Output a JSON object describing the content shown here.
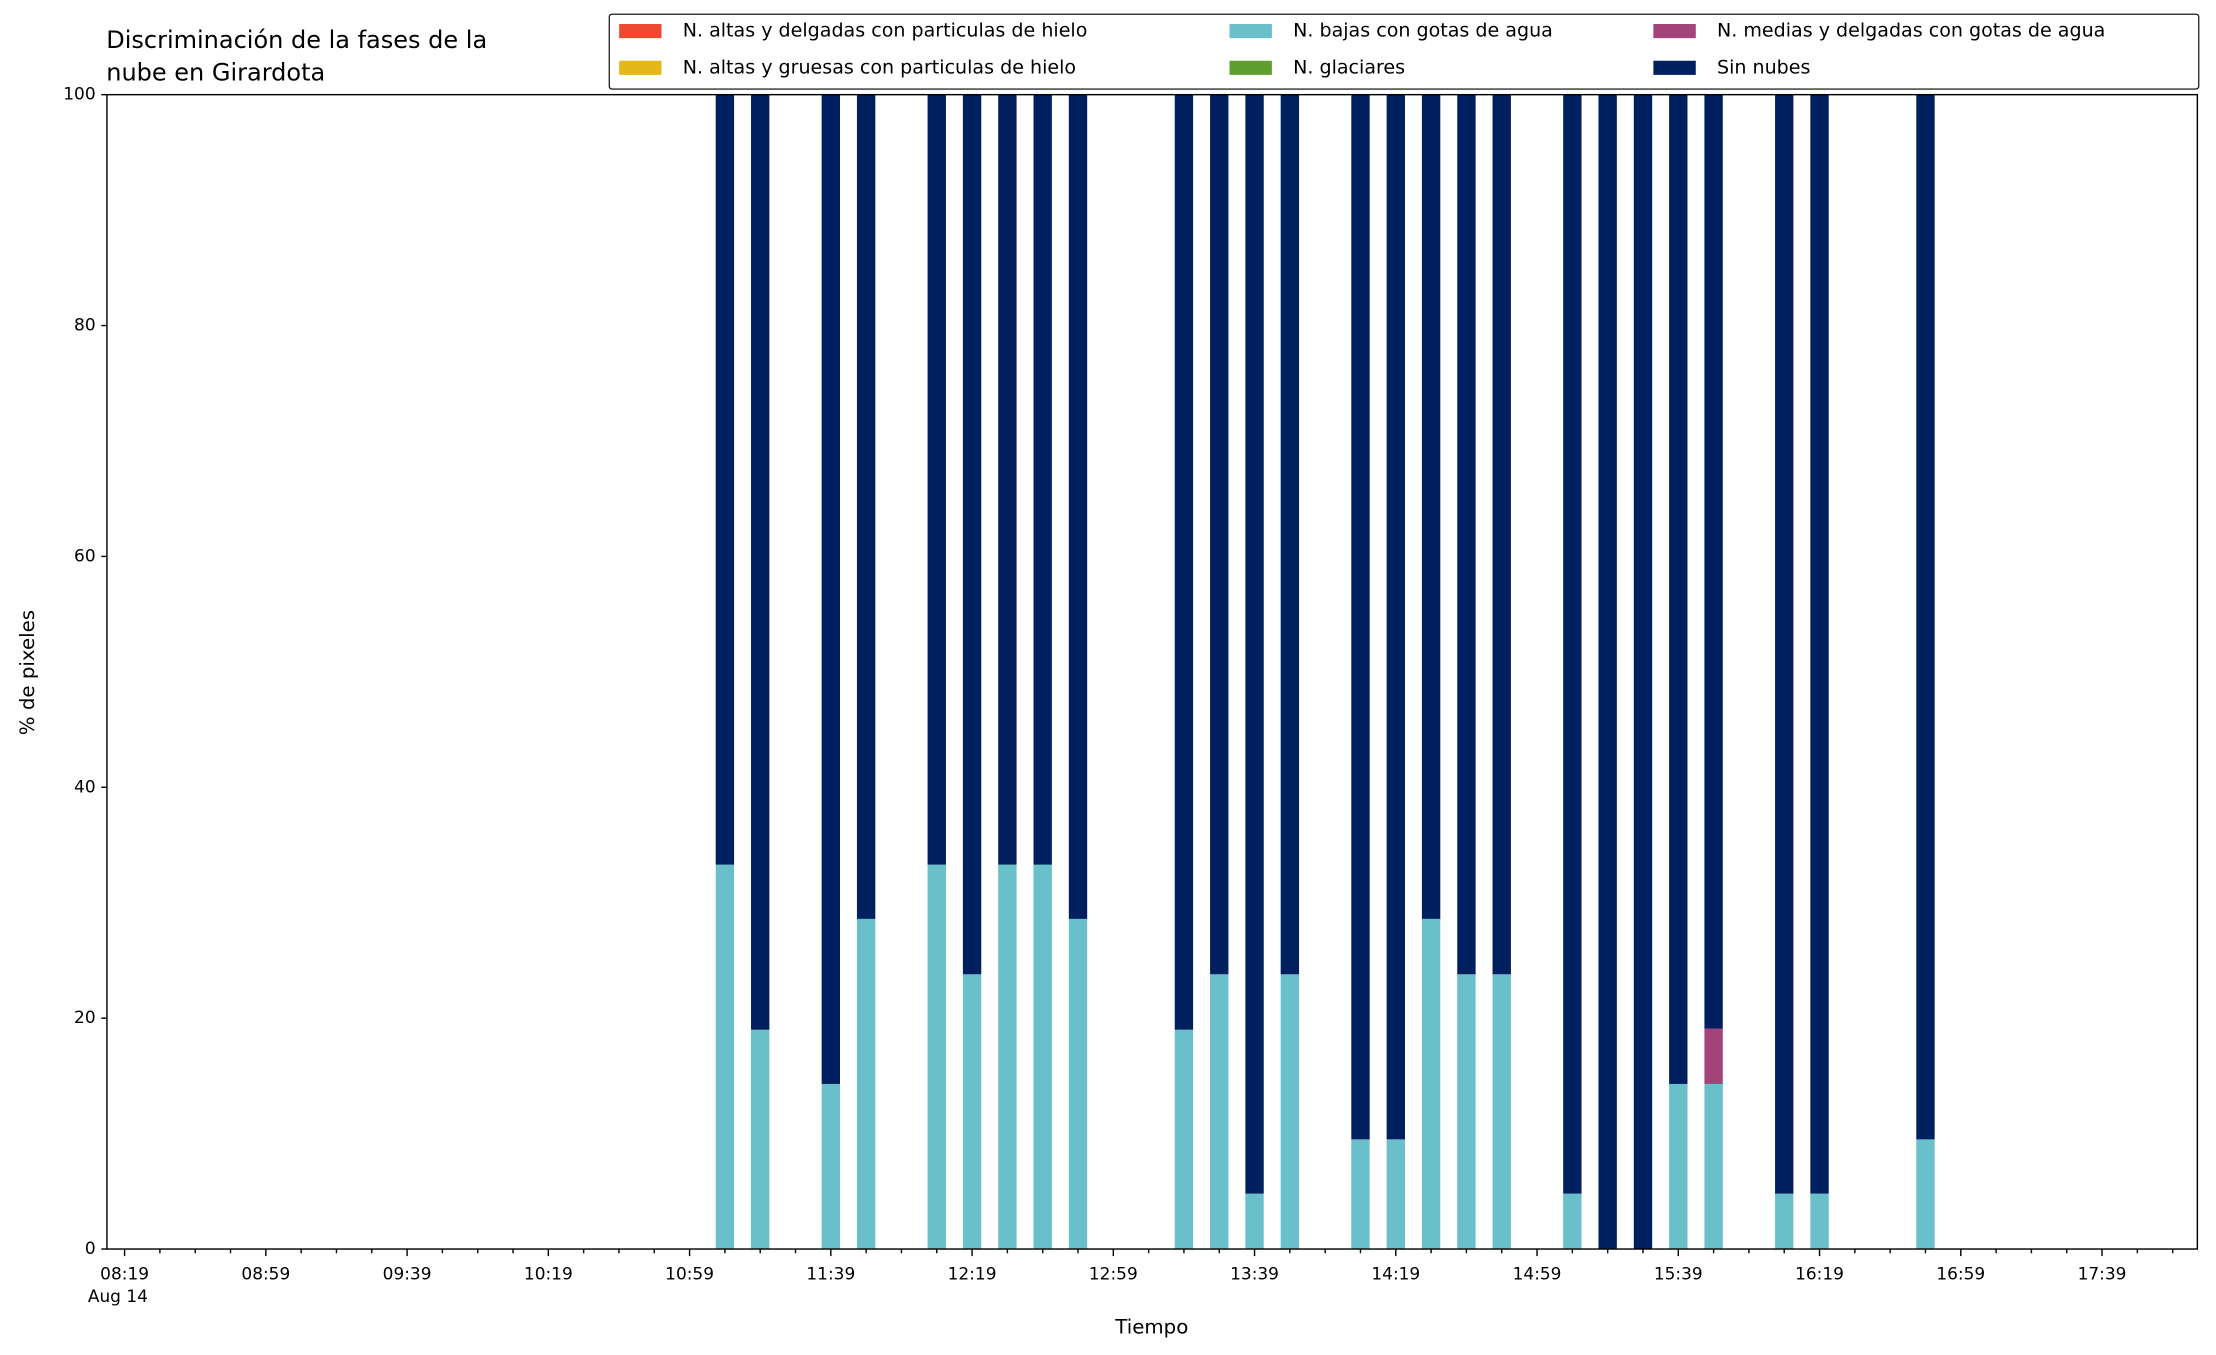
{
  "chart_data": {
    "type": "bar",
    "stacked": true,
    "title": [
      "Discriminación de la fases de la",
      "nube en Girardota"
    ],
    "xlabel": "Tiempo",
    "ylabel": "% de pixeles",
    "x": [
      "11:09",
      "11:19",
      "11:39",
      "11:49",
      "12:09",
      "12:19",
      "12:29",
      "12:39",
      "12:49",
      "13:19",
      "13:29",
      "13:39",
      "13:49",
      "14:09",
      "14:19",
      "14:29",
      "14:39",
      "14:49",
      "15:09",
      "15:19",
      "15:29",
      "15:39",
      "15:49",
      "16:09",
      "16:19",
      "16:49"
    ],
    "series": [
      {
        "name": "N. altas y delgadas con particulas de hielo",
        "color": "#ee4a2f",
        "values": [
          0,
          0,
          0,
          0,
          0,
          0,
          0,
          0,
          0,
          0,
          0,
          0,
          0,
          0,
          0,
          0,
          0,
          0,
          0,
          0,
          0,
          0,
          0,
          0,
          0,
          0
        ]
      },
      {
        "name": "N. altas y gruesas con particulas de hielo",
        "color": "#e5b81a",
        "values": [
          0,
          0,
          0,
          0,
          0,
          0,
          0,
          0,
          0,
          0,
          0,
          0,
          0,
          0,
          0,
          0,
          0,
          0,
          0,
          0,
          0,
          0,
          0,
          0,
          0,
          0
        ]
      },
      {
        "name": "N. bajas con gotas de agua",
        "color": "#69bfca",
        "values": [
          33.3,
          19.0,
          14.3,
          28.6,
          33.3,
          23.8,
          33.3,
          33.3,
          28.6,
          19.0,
          23.8,
          4.8,
          23.8,
          9.5,
          9.5,
          28.6,
          23.8,
          23.8,
          4.8,
          0,
          0,
          14.3,
          14.3,
          4.8,
          4.8,
          9.5
        ]
      },
      {
        "name": "N. glaciares",
        "color": "#5f9e2f",
        "values": [
          0,
          0,
          0,
          0,
          0,
          0,
          0,
          0,
          0,
          0,
          0,
          0,
          0,
          0,
          0,
          0,
          0,
          0,
          0,
          0,
          0,
          0,
          0,
          0,
          0,
          0
        ]
      },
      {
        "name": "N. medias y delgadas con gotas de agua",
        "color": "#a2437a",
        "values": [
          0,
          0,
          0,
          0,
          0,
          0,
          0,
          0,
          0,
          0,
          0,
          0,
          0,
          0,
          0,
          0,
          0,
          0,
          0,
          0,
          0,
          0,
          4.8,
          0,
          0,
          0
        ]
      },
      {
        "name": "Sin nubes",
        "color": "#001f5f",
        "values": [
          66.7,
          81.0,
          85.7,
          71.4,
          66.7,
          76.2,
          66.7,
          66.7,
          71.4,
          81.0,
          76.2,
          95.2,
          76.2,
          90.5,
          90.5,
          71.4,
          76.2,
          76.2,
          95.2,
          100,
          100,
          85.7,
          80.9,
          95.2,
          95.2,
          90.5
        ]
      }
    ],
    "xlim": [
      "08:14",
      "18:06"
    ],
    "xticks": [
      "08:19",
      "08:59",
      "09:39",
      "10:19",
      "10:59",
      "11:39",
      "12:19",
      "12:59",
      "13:39",
      "14:19",
      "14:59",
      "15:39",
      "16:19",
      "16:59",
      "17:39"
    ],
    "xtick_date": "Aug 14",
    "xminorticks": [
      "08:29",
      "08:39",
      "08:49",
      "09:09",
      "09:19",
      "09:29",
      "09:49",
      "09:59",
      "10:09",
      "10:29",
      "10:39",
      "10:49",
      "11:09",
      "11:19",
      "11:29",
      "11:49",
      "11:59",
      "12:09",
      "12:29",
      "12:39",
      "12:49",
      "13:09",
      "13:19",
      "13:29",
      "13:49",
      "13:59",
      "14:09",
      "14:29",
      "14:39",
      "14:49",
      "15:09",
      "15:19",
      "15:29",
      "15:49",
      "15:59",
      "16:09",
      "16:29",
      "16:39",
      "16:49",
      "17:09",
      "17:19",
      "17:29",
      "17:49",
      "17:59"
    ],
    "ylim": [
      0,
      100
    ],
    "yticks": [
      0,
      20,
      40,
      60,
      80,
      100
    ],
    "grid": false,
    "legend": "upper right"
  }
}
